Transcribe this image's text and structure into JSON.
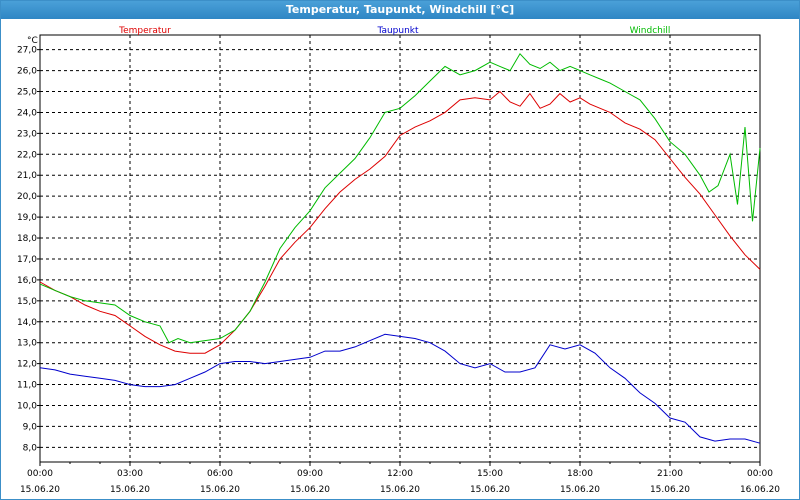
{
  "window": {
    "title": "Temperatur, Taupunkt, Windchill [°C]"
  },
  "chart_data": {
    "type": "line",
    "title": "Temperatur, Taupunkt, Windchill [°C]",
    "ylabel": "°C",
    "ylim": [
      7.3,
      27.7
    ],
    "xlim": [
      0,
      24
    ],
    "grid": true,
    "legend": [
      "Temperatur",
      "Taupunkt",
      "Windchill"
    ],
    "y_ticks": [
      "8,0",
      "9,0",
      "10,0",
      "11,0",
      "12,0",
      "13,0",
      "14,0",
      "15,0",
      "16,0",
      "17,0",
      "18,0",
      "19,0",
      "20,0",
      "21,0",
      "22,0",
      "23,0",
      "24,0",
      "25,0",
      "26,0",
      "27,0"
    ],
    "y_tick_values": [
      8,
      9,
      10,
      11,
      12,
      13,
      14,
      15,
      16,
      17,
      18,
      19,
      20,
      21,
      22,
      23,
      24,
      25,
      26,
      27
    ],
    "x_ticks": [
      {
        "x": 0,
        "time": "00:00",
        "date": "15.06.20"
      },
      {
        "x": 3,
        "time": "03:00",
        "date": "15.06.20"
      },
      {
        "x": 6,
        "time": "06:00",
        "date": "15.06.20"
      },
      {
        "x": 9,
        "time": "09:00",
        "date": "15.06.20"
      },
      {
        "x": 12,
        "time": "12:00",
        "date": "15.06.20"
      },
      {
        "x": 15,
        "time": "15:00",
        "date": "15.06.20"
      },
      {
        "x": 18,
        "time": "18:00",
        "date": "15.06.20"
      },
      {
        "x": 21,
        "time": "21:00",
        "date": "15.06.20"
      },
      {
        "x": 24,
        "time": "00:00",
        "date": "16.06.20"
      }
    ],
    "series": [
      {
        "name": "Temperatur",
        "color": "#dd0000",
        "x": [
          0,
          0.5,
          1,
          1.5,
          2,
          2.5,
          3,
          3.5,
          4,
          4.5,
          5,
          5.5,
          6,
          6.5,
          7,
          7.5,
          8,
          8.5,
          9,
          9.5,
          10,
          10.5,
          11,
          11.5,
          12,
          12.5,
          13,
          13.5,
          14,
          14.5,
          15,
          15.33,
          15.67,
          16,
          16.33,
          16.67,
          17,
          17.33,
          17.67,
          18,
          18.33,
          18.67,
          19,
          19.5,
          20,
          20.5,
          21,
          21.5,
          22,
          22.5,
          23,
          23.5,
          24
        ],
        "values": [
          15.9,
          15.5,
          15.2,
          14.8,
          14.5,
          14.3,
          13.8,
          13.3,
          12.9,
          12.6,
          12.5,
          12.5,
          12.9,
          13.6,
          14.5,
          15.7,
          17.0,
          17.8,
          18.5,
          19.4,
          20.2,
          20.8,
          21.3,
          21.9,
          22.9,
          23.3,
          23.6,
          24.0,
          24.6,
          24.7,
          24.6,
          25.0,
          24.5,
          24.3,
          24.9,
          24.2,
          24.4,
          24.9,
          24.5,
          24.7,
          24.4,
          24.2,
          24.0,
          23.5,
          23.2,
          22.7,
          21.8,
          20.9,
          20.1,
          19.1,
          18.1,
          17.2,
          16.5
        ]
      },
      {
        "name": "Taupunkt",
        "color": "#0000cc",
        "x": [
          0,
          0.5,
          1,
          1.5,
          2,
          2.5,
          3,
          3.5,
          4,
          4.5,
          5,
          5.5,
          6,
          6.5,
          7,
          7.5,
          8,
          8.5,
          9,
          9.5,
          10,
          10.5,
          11,
          11.5,
          12,
          12.5,
          13,
          13.5,
          14,
          14.5,
          15,
          15.5,
          16,
          16.5,
          17,
          17.5,
          18,
          18.5,
          19,
          19.5,
          20,
          20.5,
          21,
          21.5,
          22,
          22.5,
          23,
          23.5,
          24
        ],
        "values": [
          11.8,
          11.7,
          11.5,
          11.4,
          11.3,
          11.2,
          11.0,
          10.9,
          10.9,
          11.0,
          11.3,
          11.6,
          12.0,
          12.1,
          12.1,
          12.0,
          12.1,
          12.2,
          12.3,
          12.6,
          12.6,
          12.8,
          13.1,
          13.4,
          13.3,
          13.2,
          13.0,
          12.6,
          12.0,
          11.8,
          12.0,
          11.6,
          11.6,
          11.8,
          12.9,
          12.7,
          12.9,
          12.5,
          11.8,
          11.3,
          10.6,
          10.1,
          9.4,
          9.2,
          8.5,
          8.3,
          8.4,
          8.4,
          8.2
        ]
      },
      {
        "name": "Windchill",
        "color": "#00bb00",
        "x": [
          0,
          0.5,
          1,
          1.5,
          2,
          2.5,
          3,
          3.5,
          4,
          4.3,
          4.6,
          5,
          5.5,
          6,
          6.5,
          7,
          7.5,
          8,
          8.5,
          9,
          9.5,
          10,
          10.5,
          11,
          11.5,
          12,
          12.5,
          13,
          13.5,
          14,
          14.5,
          15,
          15.33,
          15.67,
          16,
          16.33,
          16.67,
          17,
          17.33,
          17.67,
          18,
          18.33,
          18.67,
          19,
          19.5,
          20,
          20.5,
          21,
          21.5,
          22,
          22.3,
          22.6,
          23,
          23.25,
          23.5,
          23.75,
          24
        ],
        "values": [
          15.8,
          15.5,
          15.2,
          15.0,
          14.9,
          14.8,
          14.3,
          14.0,
          13.8,
          13.0,
          13.2,
          13.0,
          13.1,
          13.2,
          13.6,
          14.5,
          15.9,
          17.5,
          18.5,
          19.3,
          20.4,
          21.1,
          21.8,
          22.8,
          24.0,
          24.2,
          24.8,
          25.5,
          26.2,
          25.8,
          26.0,
          26.4,
          26.2,
          26.0,
          26.8,
          26.3,
          26.1,
          26.4,
          26.0,
          26.2,
          26.0,
          25.8,
          25.6,
          25.4,
          25.0,
          24.6,
          23.7,
          22.6,
          22.0,
          21.0,
          20.2,
          20.5,
          22.0,
          19.6,
          23.3,
          18.8,
          22.3
        ]
      }
    ]
  }
}
